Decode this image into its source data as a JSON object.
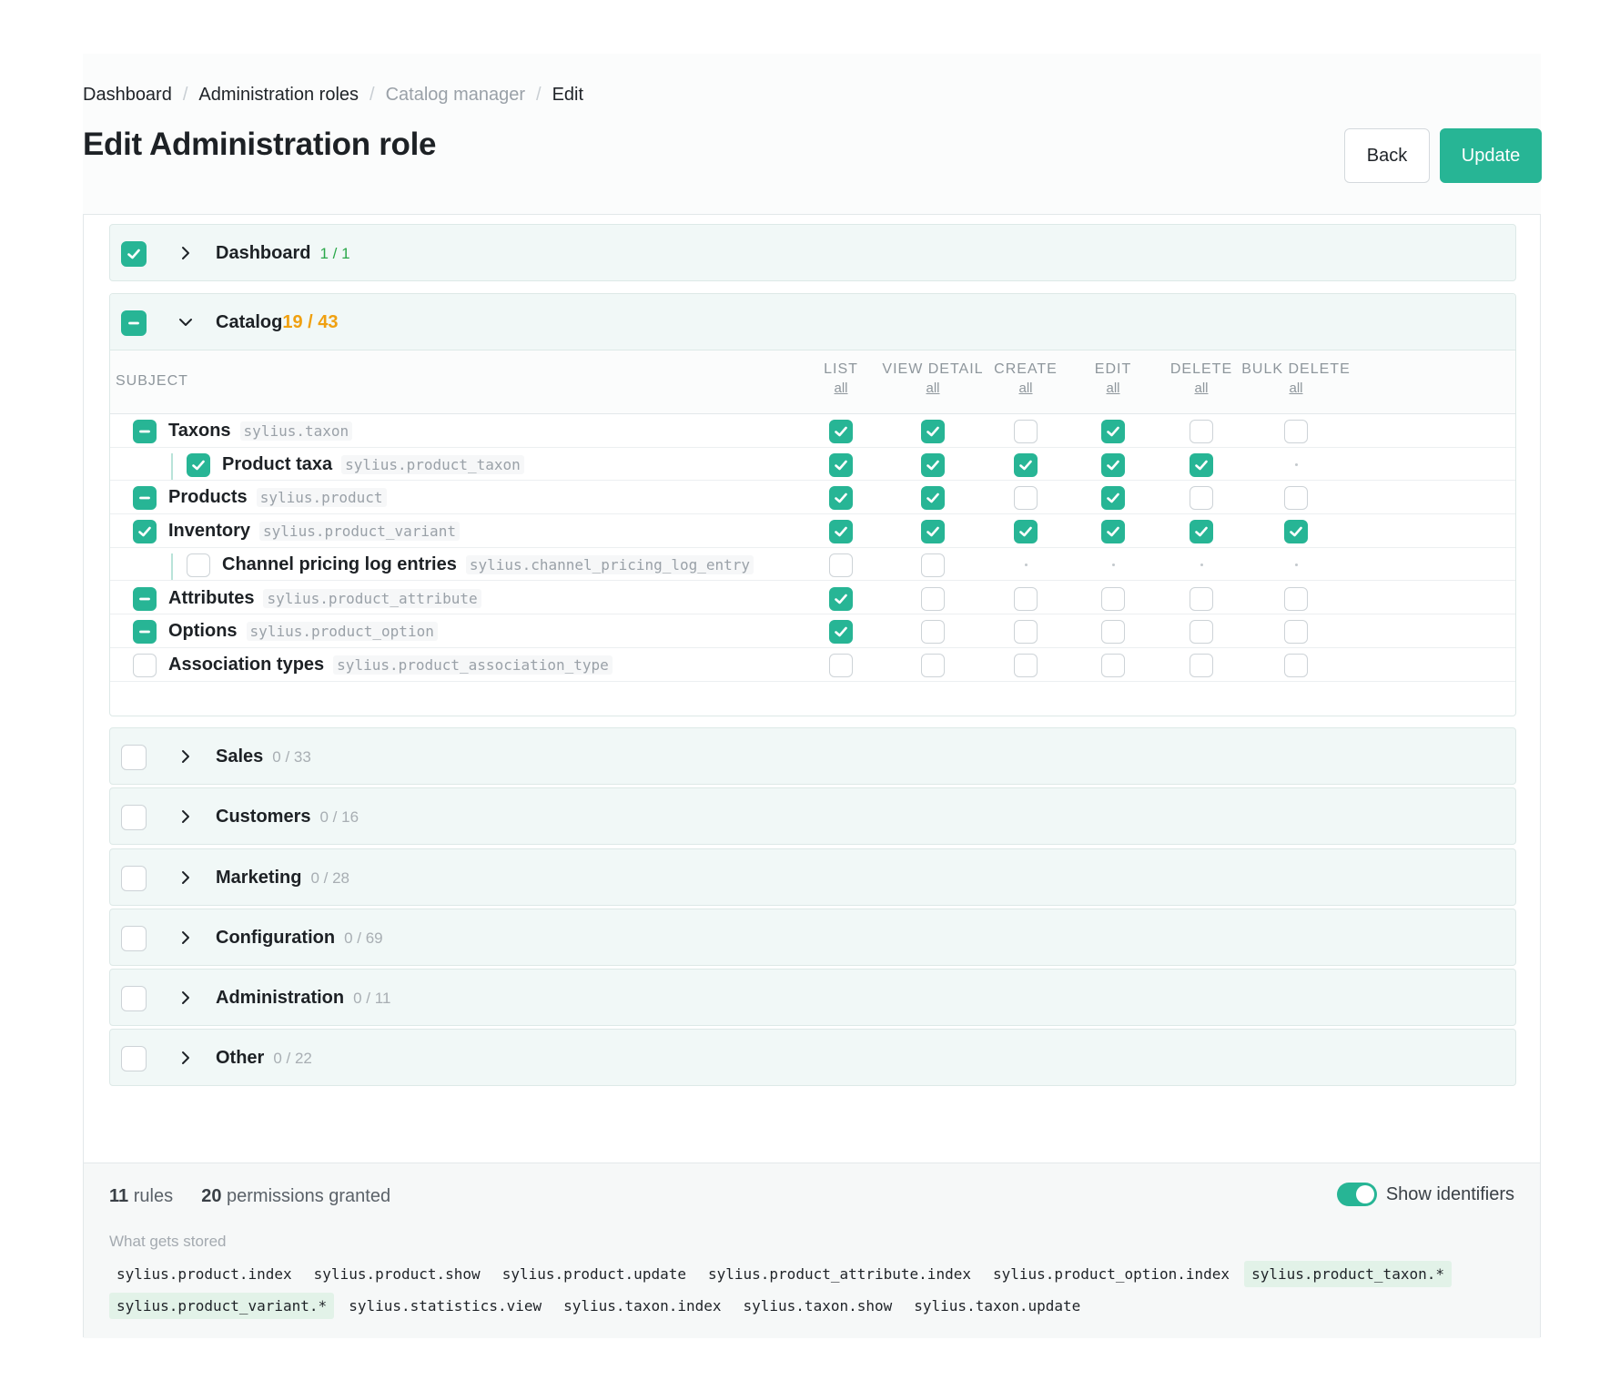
{
  "breadcrumb": [
    "Dashboard",
    "Administration roles",
    "Catalog manager",
    "Edit"
  ],
  "title": "Edit Administration role",
  "actions": {
    "back": "Back",
    "update": "Update"
  },
  "sections": [
    {
      "name": "Dashboard",
      "count": "1 / 1",
      "state": "on",
      "expanded": false,
      "count_color": "green"
    },
    {
      "name": "Catalog",
      "count": "19 / 43",
      "state": "partial",
      "expanded": true,
      "count_color": "orange"
    },
    {
      "name": "Sales",
      "count": "0 / 33",
      "state": "off",
      "expanded": false
    },
    {
      "name": "Customers",
      "count": "0 / 16",
      "state": "off",
      "expanded": false
    },
    {
      "name": "Marketing",
      "count": "0 / 28",
      "state": "off",
      "expanded": false
    },
    {
      "name": "Configuration",
      "count": "0 / 69",
      "state": "off",
      "expanded": false
    },
    {
      "name": "Administration",
      "count": "0 / 11",
      "state": "off",
      "expanded": false
    },
    {
      "name": "Other",
      "count": "0 / 22",
      "state": "off",
      "expanded": false
    }
  ],
  "table": {
    "subject_label": "SUBJECT",
    "columns": [
      {
        "label": "LIST",
        "all": "all"
      },
      {
        "label": "VIEW DETAIL",
        "all": "all"
      },
      {
        "label": "CREATE",
        "all": "all"
      },
      {
        "label": "EDIT",
        "all": "all"
      },
      {
        "label": "DELETE",
        "all": "all"
      },
      {
        "label": "BULK DELETE",
        "all": "all"
      }
    ],
    "rows": [
      {
        "name": "Taxons",
        "id": "sylius.taxon",
        "state": "partial",
        "child": false,
        "cells": [
          "on",
          "on",
          "off",
          "on",
          "off",
          "off"
        ]
      },
      {
        "name": "Product taxa",
        "id": "sylius.product_taxon",
        "state": "on",
        "child": true,
        "cells": [
          "on",
          "on",
          "on",
          "on",
          "on",
          "none"
        ]
      },
      {
        "name": "Products",
        "id": "sylius.product",
        "state": "partial",
        "child": false,
        "cells": [
          "on",
          "on",
          "off",
          "on",
          "off",
          "off"
        ]
      },
      {
        "name": "Inventory",
        "id": "sylius.product_variant",
        "state": "on",
        "child": false,
        "cells": [
          "on",
          "on",
          "on",
          "on",
          "on",
          "on"
        ]
      },
      {
        "name": "Channel pricing log entries",
        "id": "sylius.channel_pricing_log_entry",
        "state": "off",
        "child": true,
        "cells": [
          "off",
          "off",
          "none",
          "none",
          "none",
          "none"
        ]
      },
      {
        "name": "Attributes",
        "id": "sylius.product_attribute",
        "state": "partial",
        "child": false,
        "cells": [
          "on",
          "off",
          "off",
          "off",
          "off",
          "off"
        ]
      },
      {
        "name": "Options",
        "id": "sylius.product_option",
        "state": "partial",
        "child": false,
        "cells": [
          "on",
          "off",
          "off",
          "off",
          "off",
          "off"
        ]
      },
      {
        "name": "Association types",
        "id": "sylius.product_association_type",
        "state": "off",
        "child": false,
        "cells": [
          "off",
          "off",
          "off",
          "off",
          "off",
          "off"
        ]
      }
    ]
  },
  "footer": {
    "rules_count": "11",
    "rules_label": "rules",
    "permissions_count": "20",
    "permissions_label": "permissions granted",
    "toggle_label": "Show identifiers",
    "toggle_on": true,
    "stored_label": "What gets stored",
    "stored": [
      {
        "text": "sylius.product.index",
        "hl": false
      },
      {
        "text": "sylius.product.show",
        "hl": false
      },
      {
        "text": "sylius.product.update",
        "hl": false
      },
      {
        "text": "sylius.product_attribute.index",
        "hl": false
      },
      {
        "text": "sylius.product_option.index",
        "hl": false
      },
      {
        "text": "sylius.product_taxon.*",
        "hl": true
      },
      {
        "text": "sylius.product_variant.*",
        "hl": true
      },
      {
        "text": "sylius.statistics.view",
        "hl": false
      },
      {
        "text": "sylius.taxon.index",
        "hl": false
      },
      {
        "text": "sylius.taxon.show",
        "hl": false
      },
      {
        "text": "sylius.taxon.update",
        "hl": false
      }
    ]
  },
  "colors": {
    "accent": "#27b595",
    "count_green": "#2ba84a",
    "count_orange": "#f0a010"
  }
}
